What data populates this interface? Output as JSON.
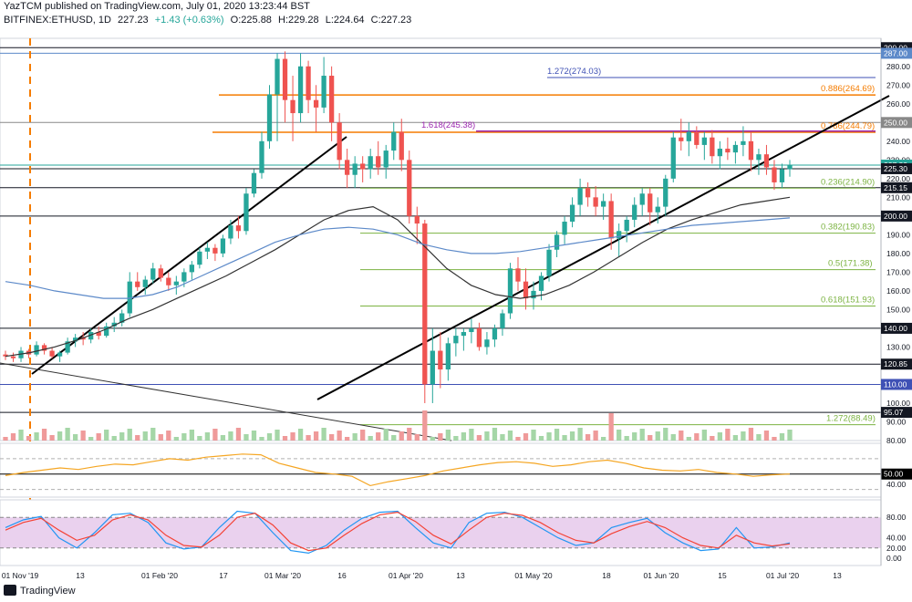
{
  "header": {
    "text": "YazTCM published on TradingView.com, July 01, 2020 13:23:44 BST",
    "symbol_prefix": "BITFINEX:ETHUSD, 1D",
    "last": "227.23",
    "change": "+1.43 (+0.63%)",
    "open_label": "O:",
    "open": "225.88",
    "high_label": "H:",
    "high": "229.28",
    "low_label": "L:",
    "low": "224.64",
    "close_label": "C:",
    "close": "227.23"
  },
  "footer": {
    "brand": "TradingView"
  },
  "colors": {
    "up": "#26a69a",
    "down": "#ef5350",
    "fib": "#7cb342",
    "orange": "#f57c00",
    "magenta": "#c2185b",
    "blue_level": "#3f51b5",
    "ema_blue": "#5d8ac9",
    "ema_black": "#333333",
    "rsi": "#f5a623",
    "stoch_k": "#2196f3",
    "stoch_d": "#f44336",
    "stoch_fill": "#e1bee7"
  },
  "chart_data": [
    {
      "type": "candlestick",
      "title": "BITFINEX:ETHUSD, 1D",
      "x_ticks": [
        "01 Nov '19",
        "13",
        "01 Feb '20",
        "17",
        "01 Mar '20",
        "16",
        "01 Apr '20",
        "13",
        "01 May '20",
        "18",
        "01 Jun '20",
        "15",
        "01 Jul '20",
        "13"
      ],
      "ylim": [
        80,
        295
      ],
      "y_ticks": [
        80,
        90,
        100,
        110,
        120,
        130,
        140,
        150,
        160,
        170,
        180,
        190,
        200,
        210,
        220,
        230,
        240,
        250,
        260,
        270,
        280,
        290
      ],
      "price_tags": [
        {
          "value": 290.0,
          "label": "290.00",
          "color": "#131722"
        },
        {
          "value": 287.0,
          "label": "287.00",
          "color": "#5d8ac9"
        },
        {
          "value": 250.0,
          "label": "250.00",
          "color": "#888888"
        },
        {
          "value": 227.23,
          "label": "227.23",
          "color": "#26a69a"
        },
        {
          "value": 225.3,
          "label": "225.30",
          "color": "#131722"
        },
        {
          "value": 215.15,
          "label": "215.15",
          "color": "#131722"
        },
        {
          "value": 200.0,
          "label": "200.00",
          "color": "#131722"
        },
        {
          "value": 140.0,
          "label": "140.00",
          "color": "#131722"
        },
        {
          "value": 120.85,
          "label": "120.85",
          "color": "#131722"
        },
        {
          "value": 110.0,
          "label": "110.00",
          "color": "#3f51b5"
        },
        {
          "value": 95.07,
          "label": "95.07",
          "color": "#131722"
        }
      ],
      "fib_levels": [
        {
          "label": "0.886(264.69)",
          "value": 264.69,
          "color": "#f57c00"
        },
        {
          "label": "0.786(244.79)",
          "value": 244.79,
          "color": "#f57c00"
        },
        {
          "label": "0.236(214.90)",
          "value": 214.9,
          "color": "#7cb342"
        },
        {
          "label": "0.382(190.83)",
          "value": 190.83,
          "color": "#7cb342"
        },
        {
          "label": "0.5(171.38)",
          "value": 171.38,
          "color": "#7cb342"
        },
        {
          "label": "0.618(151.93)",
          "value": 151.93,
          "color": "#7cb342"
        },
        {
          "label": "1.272(88.49)",
          "value": 88.49,
          "color": "#7cb342"
        },
        {
          "label": "1.272(274.03)",
          "value": 274.03,
          "color": "#3f51b5"
        },
        {
          "label": "1.618(245.38)",
          "value": 245.38,
          "color": "#9c27b0"
        }
      ],
      "candles": [
        [
          126,
          128,
          123,
          125
        ],
        [
          125,
          127,
          122,
          124
        ],
        [
          124,
          130,
          122,
          128
        ],
        [
          128,
          129,
          124,
          126
        ],
        [
          126,
          133,
          125,
          131
        ],
        [
          131,
          132,
          126,
          128
        ],
        [
          128,
          130,
          124,
          125
        ],
        [
          125,
          128,
          122,
          127
        ],
        [
          127,
          135,
          126,
          133
        ],
        [
          133,
          137,
          130,
          135
        ],
        [
          135,
          138,
          131,
          134
        ],
        [
          134,
          140,
          132,
          138
        ],
        [
          138,
          141,
          134,
          136
        ],
        [
          136,
          143,
          135,
          141
        ],
        [
          141,
          146,
          138,
          143
        ],
        [
          143,
          150,
          141,
          148
        ],
        [
          148,
          170,
          146,
          165
        ],
        [
          165,
          170,
          160,
          162
        ],
        [
          162,
          168,
          158,
          166
        ],
        [
          166,
          175,
          164,
          172
        ],
        [
          172,
          174,
          165,
          167
        ],
        [
          167,
          170,
          160,
          163
        ],
        [
          163,
          168,
          158,
          165
        ],
        [
          165,
          172,
          162,
          170
        ],
        [
          170,
          176,
          166,
          174
        ],
        [
          174,
          183,
          172,
          181
        ],
        [
          181,
          186,
          177,
          183
        ],
        [
          183,
          185,
          176,
          180
        ],
        [
          180,
          190,
          178,
          188
        ],
        [
          188,
          198,
          185,
          195
        ],
        [
          195,
          200,
          188,
          192
        ],
        [
          192,
          215,
          190,
          212
        ],
        [
          212,
          225,
          210,
          223
        ],
        [
          223,
          245,
          220,
          240
        ],
        [
          240,
          270,
          236,
          265
        ],
        [
          265,
          287,
          240,
          284
        ],
        [
          284,
          288,
          250,
          262
        ],
        [
          262,
          275,
          240,
          255
        ],
        [
          255,
          287,
          250,
          280
        ],
        [
          280,
          283,
          255,
          262
        ],
        [
          262,
          270,
          245,
          258
        ],
        [
          258,
          285,
          255,
          275
        ],
        [
          275,
          280,
          240,
          250
        ],
        [
          250,
          255,
          225,
          230
        ],
        [
          230,
          236,
          215,
          222
        ],
        [
          222,
          232,
          215,
          228
        ],
        [
          228,
          232,
          218,
          225
        ],
        [
          225,
          236,
          220,
          232
        ],
        [
          232,
          240,
          222,
          226
        ],
        [
          226,
          238,
          220,
          235
        ],
        [
          235,
          250,
          230,
          245
        ],
        [
          245,
          252,
          224,
          230
        ],
        [
          230,
          235,
          196,
          200
        ],
        [
          200,
          205,
          185,
          196
        ],
        [
          196,
          198,
          100,
          110
        ],
        [
          110,
          140,
          100,
          128
        ],
        [
          128,
          138,
          108,
          118
        ],
        [
          118,
          135,
          112,
          132
        ],
        [
          132,
          140,
          125,
          136
        ],
        [
          136,
          140,
          128,
          138
        ],
        [
          138,
          145,
          132,
          140
        ],
        [
          140,
          143,
          128,
          130
        ],
        [
          130,
          138,
          126,
          134
        ],
        [
          134,
          142,
          130,
          140
        ],
        [
          140,
          150,
          136,
          148
        ],
        [
          148,
          175,
          145,
          172
        ],
        [
          172,
          178,
          160,
          165
        ],
        [
          165,
          172,
          150,
          156
        ],
        [
          156,
          165,
          150,
          160
        ],
        [
          160,
          170,
          155,
          168
        ],
        [
          168,
          185,
          165,
          182
        ],
        [
          182,
          192,
          178,
          190
        ],
        [
          190,
          200,
          185,
          197
        ],
        [
          197,
          210,
          194,
          206
        ],
        [
          206,
          220,
          200,
          215
        ],
        [
          215,
          218,
          205,
          210
        ],
        [
          210,
          216,
          200,
          205
        ],
        [
          205,
          212,
          198,
          208
        ],
        [
          208,
          212,
          182,
          188
        ],
        [
          188,
          196,
          178,
          192
        ],
        [
          192,
          200,
          186,
          198
        ],
        [
          198,
          210,
          194,
          206
        ],
        [
          206,
          215,
          200,
          212
        ],
        [
          212,
          215,
          195,
          202
        ],
        [
          202,
          210,
          196,
          205
        ],
        [
          205,
          222,
          200,
          220
        ],
        [
          220,
          245,
          218,
          242
        ],
        [
          242,
          252,
          235,
          240
        ],
        [
          240,
          250,
          232,
          245
        ],
        [
          245,
          248,
          236,
          238
        ],
        [
          238,
          245,
          230,
          242
        ],
        [
          242,
          246,
          228,
          232
        ],
        [
          232,
          240,
          225,
          236
        ],
        [
          236,
          242,
          230,
          234
        ],
        [
          234,
          240,
          228,
          238
        ],
        [
          238,
          248,
          232,
          240
        ],
        [
          240,
          245,
          224,
          230
        ],
        [
          230,
          236,
          222,
          233
        ],
        [
          233,
          238,
          222,
          226
        ],
        [
          226,
          230,
          214,
          218
        ],
        [
          218,
          228,
          215,
          225
        ],
        [
          225,
          230,
          221,
          227
        ]
      ],
      "ema_black": [
        125,
        127,
        130,
        134,
        139,
        145,
        150,
        156,
        162,
        168,
        175,
        182,
        190,
        198,
        203,
        205,
        198,
        185,
        172,
        163,
        158,
        156,
        158,
        163,
        170,
        178,
        186,
        193,
        198,
        202,
        206,
        208,
        210
      ],
      "ema_blue": [
        165,
        163,
        160,
        158,
        156,
        156,
        158,
        162,
        168,
        174,
        180,
        186,
        190,
        193,
        194,
        193,
        190,
        185,
        182,
        180,
        180,
        181,
        183,
        185,
        187,
        189,
        191,
        193,
        195,
        196,
        197,
        198,
        199
      ],
      "rsi": [
        48,
        52,
        55,
        58,
        56,
        60,
        63,
        62,
        66,
        70,
        68,
        72,
        74,
        76,
        75,
        64,
        58,
        52,
        50,
        47,
        35,
        40,
        44,
        48,
        54,
        58,
        62,
        65,
        66,
        64,
        60,
        62,
        66,
        68,
        64,
        58,
        55,
        54,
        56,
        52,
        50,
        47,
        49,
        50
      ],
      "stoch_k": [
        60,
        75,
        82,
        40,
        20,
        50,
        85,
        88,
        70,
        30,
        18,
        22,
        60,
        92,
        88,
        50,
        15,
        10,
        25,
        55,
        78,
        90,
        92,
        60,
        30,
        20,
        70,
        88,
        90,
        80,
        60,
        40,
        25,
        30,
        60,
        70,
        78,
        50,
        30,
        15,
        18,
        60,
        20,
        22,
        30
      ],
      "stoch_d": [
        55,
        70,
        78,
        55,
        35,
        45,
        75,
        85,
        75,
        45,
        25,
        22,
        45,
        80,
        88,
        65,
        30,
        15,
        20,
        45,
        68,
        85,
        90,
        72,
        45,
        28,
        55,
        80,
        88,
        84,
        70,
        50,
        35,
        30,
        48,
        62,
        72,
        60,
        40,
        25,
        20,
        45,
        30,
        24,
        28
      ]
    }
  ]
}
